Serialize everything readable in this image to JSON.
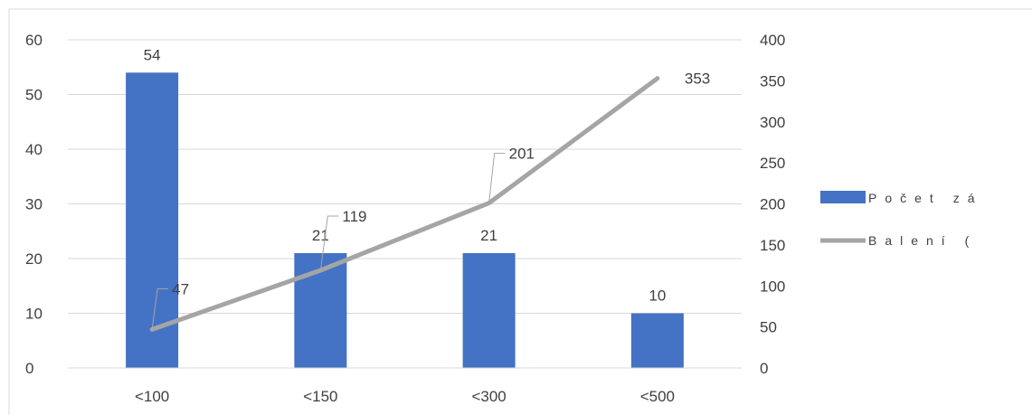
{
  "chart_data": {
    "type": "bar",
    "categories": [
      "<100",
      "<150",
      "<300",
      "<500"
    ],
    "series": [
      {
        "name": "Počet zá",
        "type": "bar",
        "axis": "left",
        "color": "#4472C4",
        "values": [
          54,
          21,
          21,
          10
        ]
      },
      {
        "name": "Balení (",
        "type": "line",
        "axis": "right",
        "color": "#A5A5A5",
        "values": [
          47,
          119,
          201,
          353
        ]
      }
    ],
    "y_left": {
      "min": 0,
      "max": 60,
      "ticks": [
        "0",
        "10",
        "20",
        "30",
        "40",
        "50",
        "60"
      ]
    },
    "y_right": {
      "min": 0,
      "max": 400,
      "ticks": [
        "0",
        "50",
        "100",
        "150",
        "200",
        "250",
        "300",
        "350",
        "400"
      ]
    },
    "grid": true,
    "legend_position": "right",
    "colors": {
      "gridline": "#D9D9D9",
      "text": "#404040",
      "frame": "#D9D9D9"
    }
  }
}
